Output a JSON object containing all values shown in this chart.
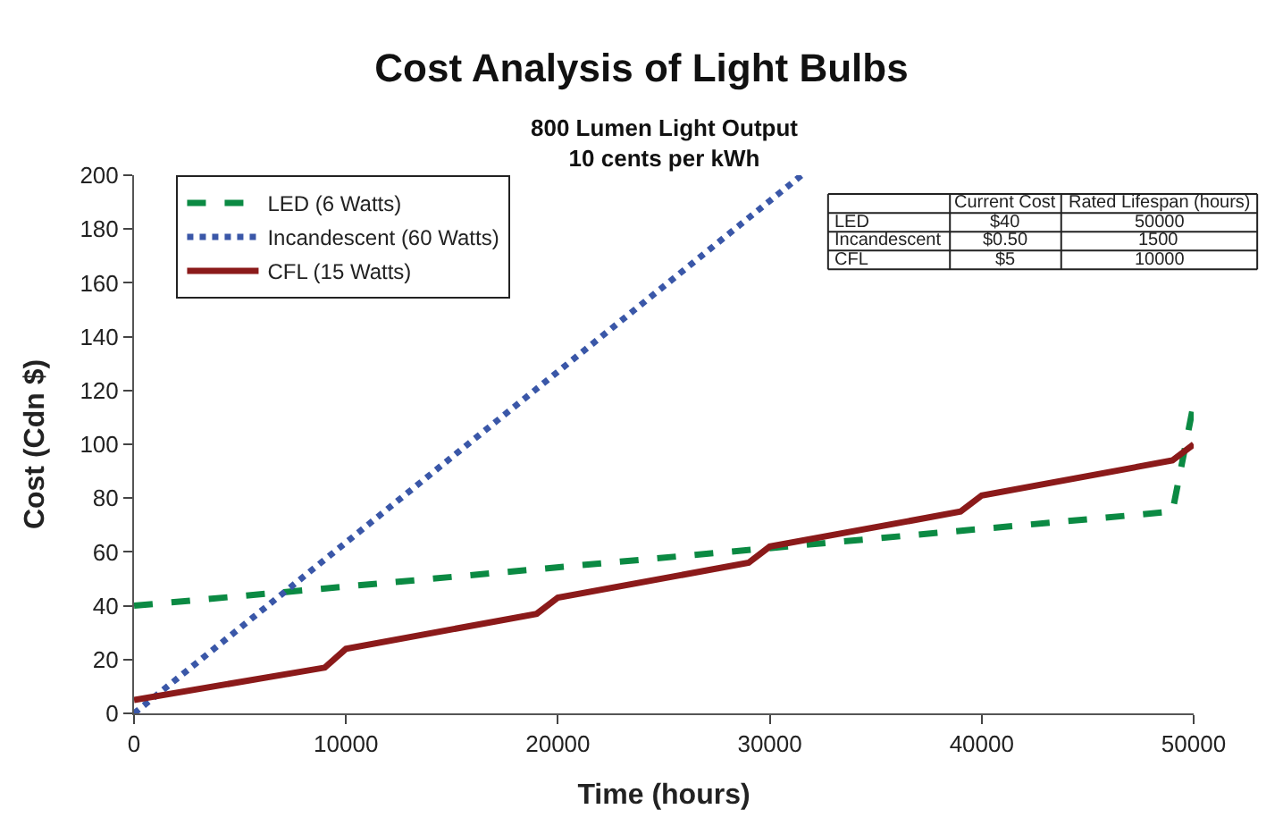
{
  "chart_data": {
    "type": "line",
    "title": "Cost Analysis of Light Bulbs",
    "subtitle": "800 Lumen Light Output\n10 cents per kWh",
    "xlabel": "Time (hours)",
    "ylabel": "Cost (Cdn $)",
    "xlim": [
      0,
      50000
    ],
    "xticks": [
      0,
      10000,
      20000,
      30000,
      40000,
      50000
    ],
    "ylim": [
      0,
      200
    ],
    "yticks": [
      0,
      20,
      40,
      60,
      80,
      100,
      120,
      140,
      160,
      180,
      200
    ],
    "grid": false,
    "legend": "top left",
    "marker": "none",
    "series": [
      {
        "name": "LED (6 Watts)",
        "color": "#0b8a43",
        "line_style": "dashed",
        "x": [
          0,
          49000,
          50000
        ],
        "values": [
          40,
          75,
          115
        ]
      },
      {
        "name": "Incandescent (60 Watts)",
        "color": "#3a57a8",
        "line_style": "dotted",
        "x": [
          0,
          31500
        ],
        "values": [
          0,
          200
        ]
      },
      {
        "name": "CFL (15 Watts)",
        "color": "#8b1a1a",
        "line_style": "solid",
        "x": [
          0,
          9000,
          10000,
          19000,
          20000,
          29000,
          30000,
          39000,
          40000,
          49000,
          50000
        ],
        "values": [
          5,
          17,
          24,
          37,
          43,
          56,
          62,
          75,
          81,
          94,
          100
        ]
      }
    ],
    "annotations": [
      "Current Cost",
      "Rated Lifespan (hours)",
      "LED",
      "$40",
      "50000",
      "Incandescent",
      "$0.50",
      "1500",
      "CFL",
      "$5",
      "10000"
    ]
  }
}
